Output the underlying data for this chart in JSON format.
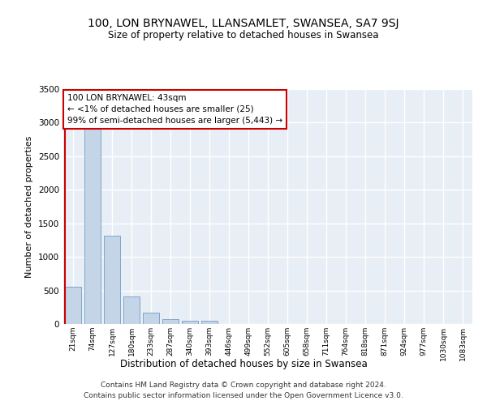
{
  "title": "100, LON BRYNAWEL, LLANSAMLET, SWANSEA, SA7 9SJ",
  "subtitle": "Size of property relative to detached houses in Swansea",
  "xlabel": "Distribution of detached houses by size in Swansea",
  "ylabel": "Number of detached properties",
  "categories": [
    "21sqm",
    "74sqm",
    "127sqm",
    "180sqm",
    "233sqm",
    "287sqm",
    "340sqm",
    "393sqm",
    "446sqm",
    "499sqm",
    "552sqm",
    "605sqm",
    "658sqm",
    "711sqm",
    "764sqm",
    "818sqm",
    "871sqm",
    "924sqm",
    "977sqm",
    "1030sqm",
    "1083sqm"
  ],
  "bar_values": [
    560,
    2920,
    1310,
    410,
    175,
    75,
    50,
    45,
    0,
    0,
    0,
    0,
    0,
    0,
    0,
    0,
    0,
    0,
    0,
    0,
    0
  ],
  "bar_color": "#c5d5e8",
  "bar_edge_color": "#5a8fc0",
  "annotation_text": "100 LON BRYNAWEL: 43sqm\n← <1% of detached houses are smaller (25)\n99% of semi-detached houses are larger (5,443) →",
  "annotation_box_color": "#ffffff",
  "annotation_box_edge": "#cc0000",
  "property_line_color": "#cc0000",
  "ylim": [
    0,
    3500
  ],
  "yticks": [
    0,
    500,
    1000,
    1500,
    2000,
    2500,
    3000,
    3500
  ],
  "background_color": "#e8eef5",
  "grid_color": "#ffffff",
  "footer1": "Contains HM Land Registry data © Crown copyright and database right 2024.",
  "footer2": "Contains public sector information licensed under the Open Government Licence v3.0."
}
